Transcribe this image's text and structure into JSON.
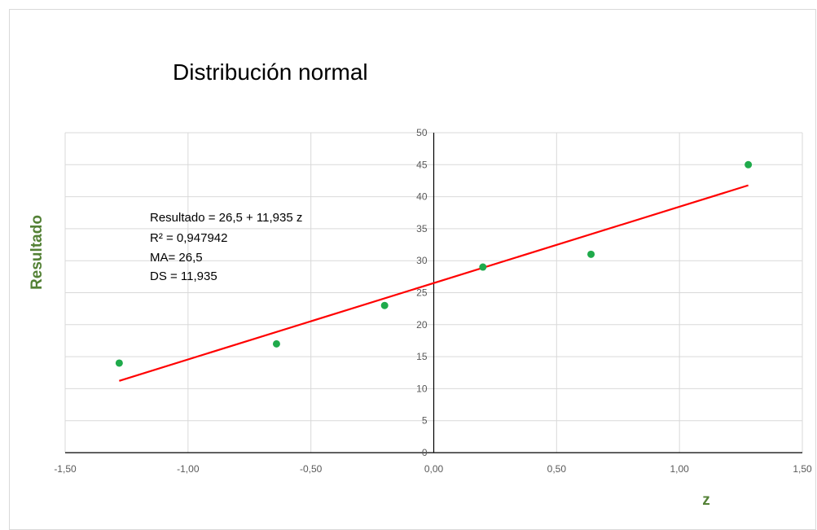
{
  "chart_data": {
    "type": "scatter",
    "title": "Distribución normal",
    "xlabel": "z",
    "ylabel": "Resultado",
    "xlim": [
      -1.5,
      1.5
    ],
    "ylim": [
      0,
      50
    ],
    "x_ticks": [
      "-1,50",
      "-1,00",
      "-0,50",
      "0,00",
      "0,50",
      "1,00",
      "1,50"
    ],
    "x_tick_values": [
      -1.5,
      -1.0,
      -0.5,
      0.0,
      0.5,
      1.0,
      1.5
    ],
    "y_ticks": [
      "0",
      "5",
      "10",
      "15",
      "20",
      "25",
      "30",
      "35",
      "40",
      "45",
      "50"
    ],
    "y_tick_values": [
      0,
      5,
      10,
      15,
      20,
      25,
      30,
      35,
      40,
      45,
      50
    ],
    "grid": true,
    "series": [
      {
        "points": [
          {
            "x": -1.28,
            "y": 14
          },
          {
            "x": -0.64,
            "y": 17
          },
          {
            "x": -0.2,
            "y": 23
          },
          {
            "x": 0.2,
            "y": 29
          },
          {
            "x": 0.64,
            "y": 31
          },
          {
            "x": 1.28,
            "y": 45
          }
        ],
        "color": "#1faa4b"
      }
    ],
    "trendline": {
      "intercept": 26.5,
      "slope": 11.935,
      "x_range": [
        -1.28,
        1.28
      ],
      "color": "#ff0000"
    },
    "annotations": [
      "Resultado = 26,5 + 11,935 z",
      "R² = 0,947942",
      "MA= 26,5",
      "DS = 11,935"
    ]
  },
  "colors": {
    "axis_label": "#538135",
    "gridline": "#d9d9d9",
    "axis_line": "#000000"
  }
}
